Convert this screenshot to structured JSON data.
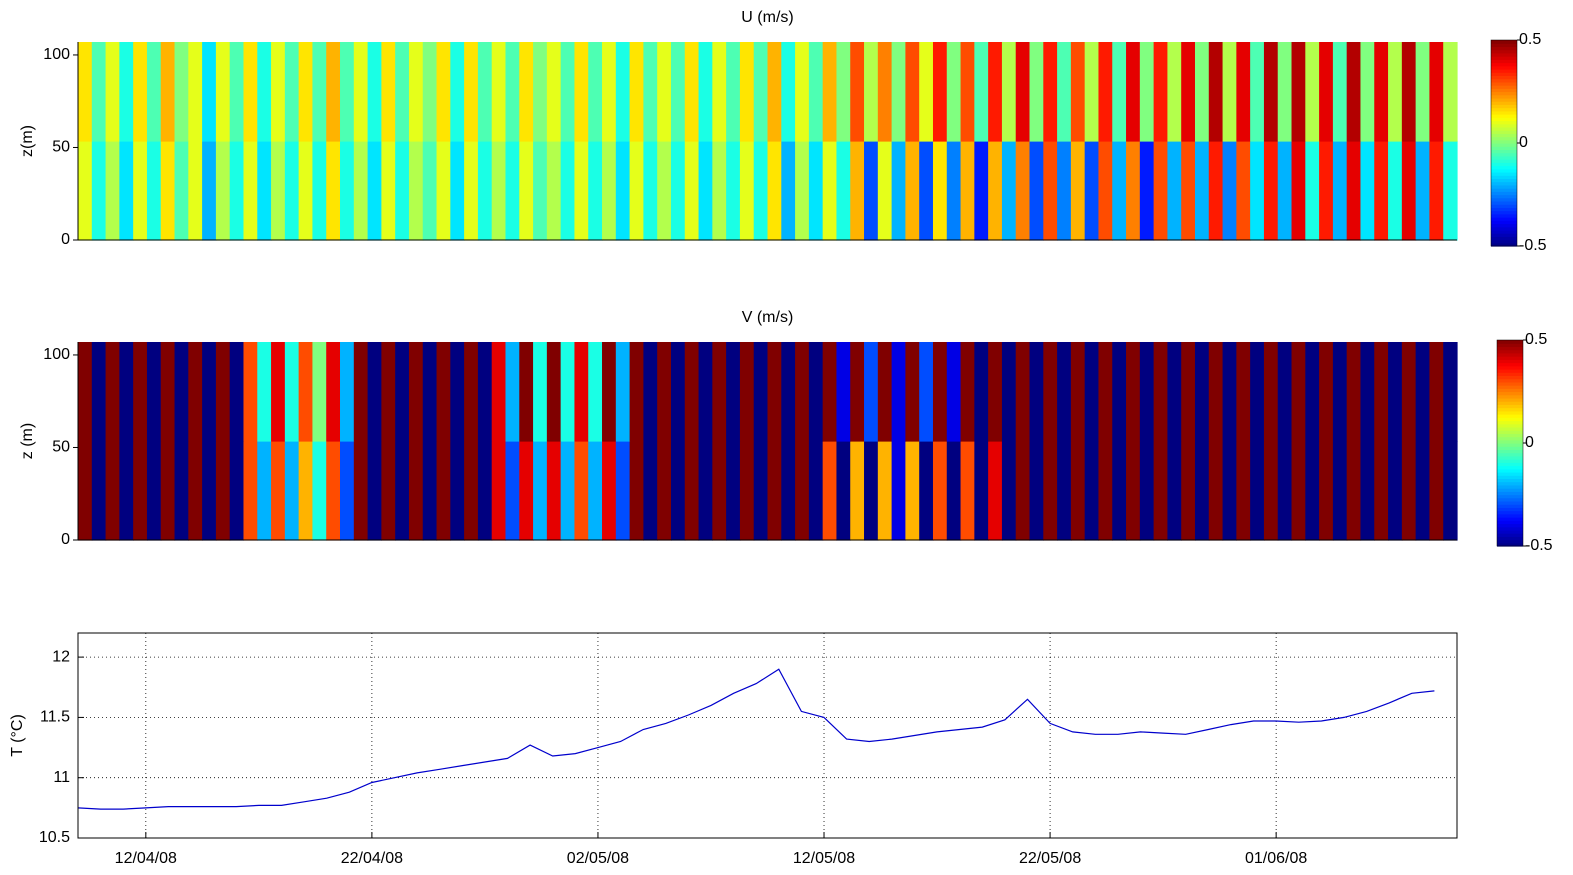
{
  "chart_data": [
    {
      "type": "heatmap",
      "title": "U (m/s)",
      "ylabel": "z(m)",
      "xlim": [
        "09/04/08",
        "09/06/08"
      ],
      "ylim": [
        0,
        107
      ],
      "yticks": [
        0,
        50,
        100
      ],
      "colormap": "jet",
      "clim": [
        -0.5,
        0.5
      ],
      "cticks": [
        -0.5,
        0,
        0.5
      ],
      "values": [
        [
          0.1,
          -0.1,
          0.05,
          -0.15,
          0.1,
          -0.1,
          0.15,
          -0.05,
          0.1,
          -0.2,
          0.05,
          -0.1,
          0.1,
          -0.15,
          0.05,
          -0.1,
          0.1,
          -0.1,
          0.15,
          -0.1,
          0.05,
          -0.15,
          0.1,
          -0.1,
          0.05,
          -0.05,
          0.1,
          -0.15,
          0.1,
          -0.1,
          0.05,
          -0.1,
          0.1,
          -0.05,
          0.05,
          -0.1,
          0.1,
          -0.1,
          0.05,
          -0.15,
          0.1,
          -0.1,
          0.05,
          -0.1,
          0.1,
          -0.15,
          0.05,
          -0.1,
          0.1,
          -0.1,
          0.15,
          -0.2,
          0.05,
          -0.15,
          0.1,
          -0.1,
          0.2,
          -0.3,
          0.1,
          -0.2,
          0.2,
          -0.3,
          0.15,
          -0.25,
          0.2,
          -0.35,
          0.2,
          -0.2,
          0.25,
          -0.3,
          0.3,
          -0.25,
          0.2,
          -0.3,
          0.3,
          -0.2,
          0.25,
          -0.35,
          0.3,
          -0.2,
          0.3,
          -0.2,
          0.35,
          -0.25,
          0.3,
          -0.15,
          0.35,
          -0.2,
          0.4,
          -0.1,
          0.35,
          -0.2,
          0.4,
          -0.15,
          0.35,
          -0.1,
          0.4,
          -0.2,
          0.35,
          -0.1
        ],
        [
          0.15,
          -0.05,
          0.1,
          -0.1,
          0.15,
          -0.05,
          0.2,
          0,
          0.1,
          -0.15,
          0.1,
          -0.05,
          0.15,
          -0.1,
          0.1,
          -0.05,
          0.15,
          -0.05,
          0.2,
          -0.05,
          0.1,
          -0.1,
          0.15,
          -0.05,
          0.1,
          0,
          0.15,
          -0.1,
          0.15,
          -0.05,
          0.1,
          -0.05,
          0.15,
          0,
          0.1,
          -0.05,
          0.15,
          -0.05,
          0.1,
          -0.1,
          0.15,
          -0.05,
          0.1,
          -0.05,
          0.15,
          -0.1,
          0.1,
          -0.05,
          0.15,
          -0.05,
          0.2,
          -0.1,
          0.1,
          -0.05,
          0.2,
          0,
          0.3,
          0.05,
          0.25,
          0,
          0.3,
          0.1,
          0.35,
          0,
          0.3,
          -0.05,
          0.35,
          0.05,
          0.4,
          0,
          0.35,
          -0.05,
          0.3,
          0.05,
          0.35,
          -0.05,
          0.4,
          0,
          0.35,
          0.05,
          0.4,
          0,
          0.45,
          0.05,
          0.4,
          -0.05,
          0.45,
          0,
          0.45,
          0.05,
          0.4,
          -0.05,
          0.45,
          0,
          0.4,
          0.05,
          0.45,
          0,
          0.4,
          0.05
        ]
      ]
    },
    {
      "type": "heatmap",
      "title": "V (m/s)",
      "ylabel": "z (m)",
      "xlim": [
        "09/04/08",
        "09/06/08"
      ],
      "ylim": [
        0,
        107
      ],
      "yticks": [
        0,
        50,
        100
      ],
      "colormap": "jet",
      "clim": [
        -0.5,
        0.5
      ],
      "cticks": [
        -0.5,
        0,
        0.5
      ],
      "values": [
        [
          0.5,
          -0.5,
          0.5,
          -0.5,
          0.5,
          -0.5,
          0.5,
          -0.5,
          0.5,
          -0.5,
          0.5,
          -0.5,
          0.3,
          -0.2,
          0.3,
          -0.2,
          0.2,
          -0.1,
          0.3,
          -0.3,
          0.5,
          -0.5,
          0.5,
          -0.5,
          0.5,
          -0.5,
          0.5,
          -0.5,
          0.5,
          -0.5,
          0.4,
          -0.3,
          0.4,
          -0.2,
          0.4,
          -0.2,
          0.3,
          -0.2,
          0.4,
          -0.3,
          0.5,
          -0.5,
          0.5,
          -0.5,
          0.5,
          -0.5,
          0.5,
          -0.5,
          0.5,
          -0.5,
          0.5,
          -0.5,
          0.5,
          -0.5,
          0.3,
          -0.5,
          0.2,
          -0.5,
          0.2,
          -0.4,
          0.2,
          -0.5,
          0.3,
          -0.5,
          0.3,
          -0.5,
          0.4,
          -0.5,
          0.5,
          -0.5,
          0.5,
          -0.5,
          0.5,
          -0.5,
          0.5,
          -0.5,
          0.5,
          -0.5,
          0.5,
          -0.5,
          0.5,
          -0.5,
          0.5,
          -0.5,
          0.5,
          -0.5,
          0.5,
          -0.5,
          0.5,
          -0.5,
          0.5,
          -0.5,
          0.5,
          -0.5,
          0.5,
          -0.5,
          0.5,
          -0.5,
          0.5,
          -0.5
        ],
        [
          0.5,
          -0.5,
          0.5,
          -0.5,
          0.5,
          -0.5,
          0.5,
          -0.5,
          0.5,
          -0.5,
          0.5,
          -0.5,
          0.3,
          -0.1,
          0.4,
          -0.1,
          0.3,
          0,
          0.4,
          -0.2,
          0.5,
          -0.5,
          0.5,
          -0.5,
          0.5,
          -0.5,
          0.5,
          -0.5,
          0.5,
          -0.5,
          0.4,
          -0.2,
          0.5,
          -0.1,
          0.5,
          -0.1,
          0.4,
          -0.1,
          0.5,
          -0.2,
          0.5,
          -0.5,
          0.5,
          -0.5,
          0.5,
          -0.5,
          0.5,
          -0.5,
          0.5,
          -0.5,
          0.5,
          -0.5,
          0.5,
          -0.5,
          0.5,
          -0.4,
          0.5,
          -0.3,
          0.5,
          -0.4,
          0.5,
          -0.3,
          0.5,
          -0.4,
          0.5,
          -0.5,
          0.5,
          -0.5,
          0.5,
          -0.5,
          0.5,
          -0.5,
          0.5,
          -0.5,
          0.5,
          -0.5,
          0.5,
          -0.5,
          0.5,
          -0.5,
          0.5,
          -0.5,
          0.5,
          -0.5,
          0.5,
          -0.5,
          0.5,
          -0.5,
          0.5,
          -0.5,
          0.5,
          -0.5,
          0.5,
          -0.5,
          0.5,
          -0.5,
          0.5,
          -0.5,
          0.5,
          -0.5
        ]
      ]
    },
    {
      "type": "line",
      "ylabel": "T (°C)",
      "xlim": [
        "09/04/08",
        "09/06/08"
      ],
      "xticks": [
        "12/04/08",
        "22/04/08",
        "02/05/08",
        "12/05/08",
        "22/05/08",
        "01/06/08"
      ],
      "ylim": [
        10.5,
        12.2
      ],
      "yticks": [
        10.5,
        11,
        11.5,
        12
      ],
      "grid": true,
      "color": "#0000cc",
      "x": [
        "09/04/08",
        "10/04/08",
        "11/04/08",
        "12/04/08",
        "13/04/08",
        "14/04/08",
        "15/04/08",
        "16/04/08",
        "17/04/08",
        "18/04/08",
        "19/04/08",
        "20/04/08",
        "21/04/08",
        "22/04/08",
        "23/04/08",
        "24/04/08",
        "25/04/08",
        "26/04/08",
        "27/04/08",
        "28/04/08",
        "29/04/08",
        "30/04/08",
        "01/05/08",
        "02/05/08",
        "03/05/08",
        "04/05/08",
        "05/05/08",
        "06/05/08",
        "07/05/08",
        "08/05/08",
        "09/05/08",
        "10/05/08",
        "11/05/08",
        "12/05/08",
        "13/05/08",
        "14/05/08",
        "15/05/08",
        "16/05/08",
        "17/05/08",
        "18/05/08",
        "19/05/08",
        "20/05/08",
        "21/05/08",
        "22/05/08",
        "23/05/08",
        "24/05/08",
        "25/05/08",
        "26/05/08",
        "27/05/08",
        "28/05/08",
        "29/05/08",
        "30/05/08",
        "31/05/08",
        "01/06/08",
        "02/06/08",
        "03/06/08",
        "04/06/08",
        "05/06/08",
        "06/06/08",
        "07/06/08",
        "08/06/08"
      ],
      "values": [
        10.75,
        10.74,
        10.74,
        10.75,
        10.76,
        10.76,
        10.76,
        10.76,
        10.77,
        10.77,
        10.8,
        10.83,
        10.88,
        10.96,
        11.0,
        11.04,
        11.07,
        11.1,
        11.13,
        11.16,
        11.27,
        11.18,
        11.2,
        11.25,
        11.3,
        11.4,
        11.45,
        11.52,
        11.6,
        11.7,
        11.78,
        11.9,
        11.55,
        11.5,
        11.32,
        11.3,
        11.32,
        11.35,
        11.38,
        11.4,
        11.42,
        11.48,
        11.65,
        11.45,
        11.38,
        11.36,
        11.36,
        11.38,
        11.37,
        11.36,
        11.4,
        11.44,
        11.47,
        11.47,
        11.46,
        11.47,
        11.5,
        11.55,
        11.62,
        11.7,
        11.72
      ]
    }
  ]
}
